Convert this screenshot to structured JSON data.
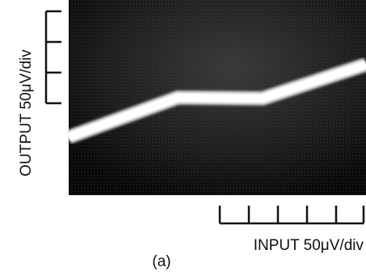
{
  "figure": {
    "y_axis_label": "OUTPUT  50μV/div",
    "x_axis_label": "INPUT  50μV/div",
    "caption": "(a)"
  }
}
